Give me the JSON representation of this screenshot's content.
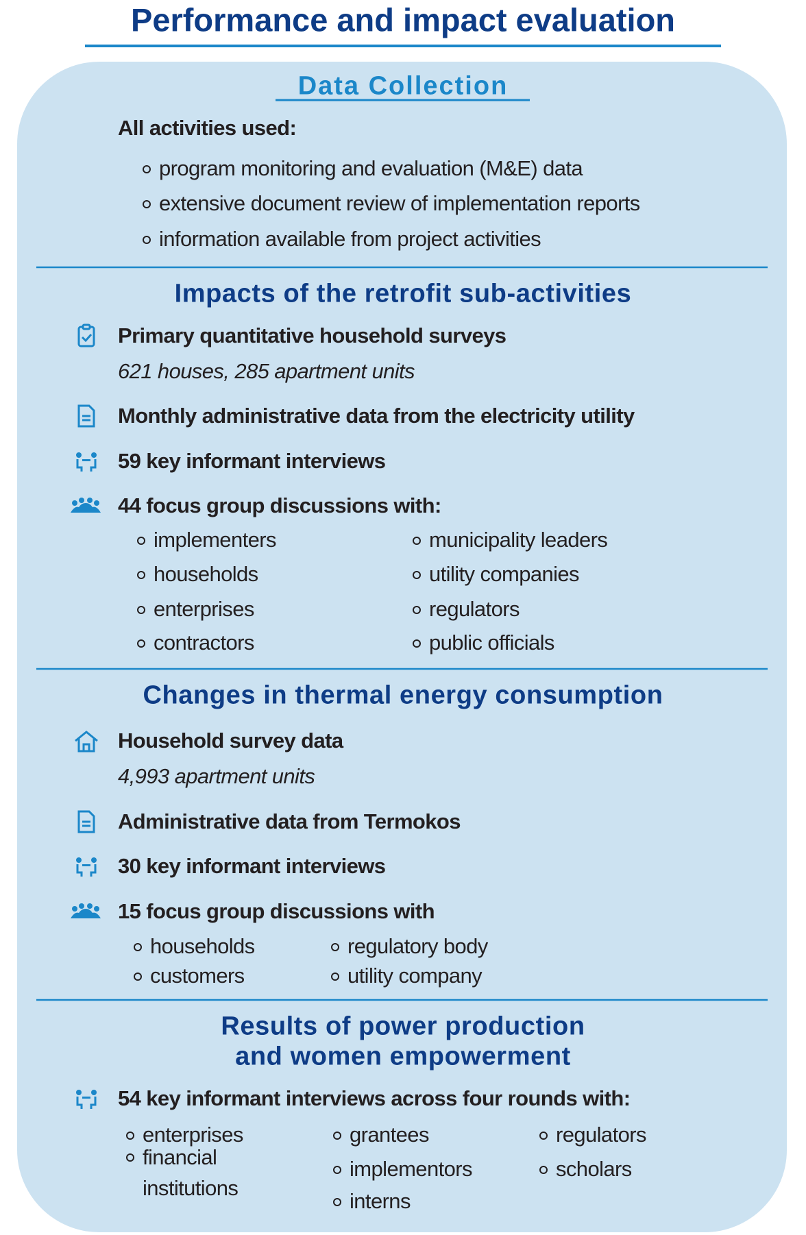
{
  "title": "Performance and impact evaluation",
  "sections": [
    {
      "heading": [
        "Data Collection"
      ],
      "intro": "All activities used:",
      "bullets": [
        "program monitoring and evaluation (M&E) data",
        "extensive document review of implementation reports",
        "information available from project activities"
      ]
    },
    {
      "heading": [
        "Impacts of the retrofit sub-activities"
      ],
      "items": [
        {
          "text": "Primary quantitative household surveys",
          "detail": "621 houses, 285 apartment units"
        },
        {
          "text": "Monthly administrative data from the electricity utility"
        },
        {
          "text": "59 key informant interviews"
        },
        {
          "text": "44 focus group discussions with:",
          "columns": [
            [
              "implementers",
              "households",
              "enterprises",
              "contractors"
            ],
            [
              "municipality leaders",
              "utility companies",
              "regulators",
              "public officials"
            ]
          ]
        }
      ]
    },
    {
      "heading": [
        "Changes in thermal energy consumption"
      ],
      "items": [
        {
          "text": "Household survey data",
          "detail": "4,993 apartment units"
        },
        {
          "text": "Administrative data from Termokos"
        },
        {
          "text": "30 key informant interviews"
        },
        {
          "text": "15 focus group discussions with",
          "columns": [
            [
              "households",
              "customers"
            ],
            [
              "regulatory body",
              "utility company"
            ]
          ]
        }
      ]
    },
    {
      "heading": [
        "Results of power production",
        "and women empowerment"
      ],
      "items": [
        {
          "text": "54 key informant interviews across four rounds with:",
          "columns": [
            [
              "enterprises",
              "financial institutions"
            ],
            [
              "grantees",
              "implementors",
              "interns"
            ],
            [
              "regulators",
              "scholars"
            ]
          ]
        }
      ]
    }
  ]
}
